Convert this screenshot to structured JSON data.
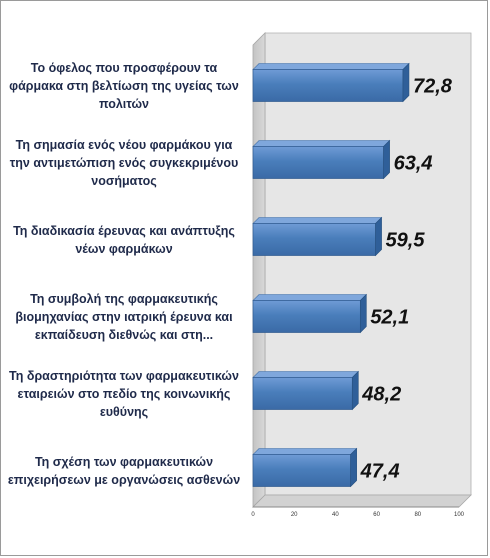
{
  "chart_data": {
    "type": "bar",
    "orientation": "horizontal",
    "categories": [
      "Το όφελος που προσφέρουν τα φάρμακα στη βελτίωση της υγείας των πολιτών",
      "Τη σημασία ενός νέου φαρμάκου για την αντιμετώπιση ενός συγκεκριμένου νοσήματος",
      "Τη διαδικασία έρευνας και ανάπτυξης νέων φαρμάκων",
      "Τη συμβολή της φαρμακευτικής βιομηχανίας στην ιατρική έρευνα και εκπαίδευση διεθνώς και στη...",
      "Τη δραστηριότητα των φαρμακευτικών εταιρειών στο πεδίο της κοινωνικής ευθύνης",
      "Τη σχέση των φαρμακευτικών επιχειρήσεων με οργανώσεις ασθενών"
    ],
    "values": [
      72.8,
      63.4,
      59.5,
      52.1,
      48.2,
      47.4
    ],
    "value_labels": [
      "72,8",
      "63,4",
      "59,5",
      "52,1",
      "48,2",
      "47,4"
    ],
    "xlim": [
      0,
      100
    ],
    "xticks": [
      "0",
      "20",
      "40",
      "60",
      "80",
      "100"
    ],
    "bar_color": "#4a7ebb",
    "style": "3d",
    "grid": false
  }
}
